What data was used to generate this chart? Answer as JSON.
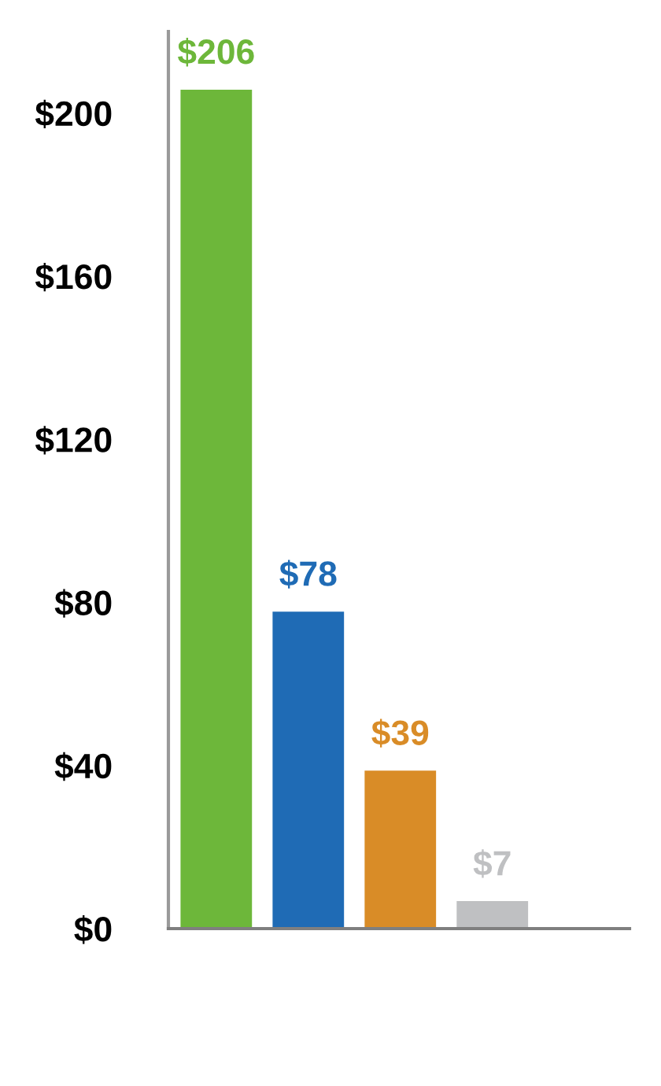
{
  "chart_data": {
    "type": "bar",
    "categories": [
      null,
      null,
      null,
      null
    ],
    "values": [
      206,
      78,
      39,
      7
    ],
    "colors": [
      "#6db73a",
      "#1f6bb5",
      "#d98c27",
      "#bfc0c2"
    ],
    "value_labels": [
      "$206",
      "$78",
      "$39",
      "$7"
    ],
    "ylim": [
      0,
      220
    ],
    "yticks": [
      {
        "value": 0,
        "label": "$0"
      },
      {
        "value": 40,
        "label": "$40"
      },
      {
        "value": 80,
        "label": "$80"
      },
      {
        "value": 120,
        "label": "$120"
      },
      {
        "value": 160,
        "label": "$160"
      },
      {
        "value": 200,
        "label": "$200"
      }
    ],
    "grid": false,
    "legend": false
  }
}
